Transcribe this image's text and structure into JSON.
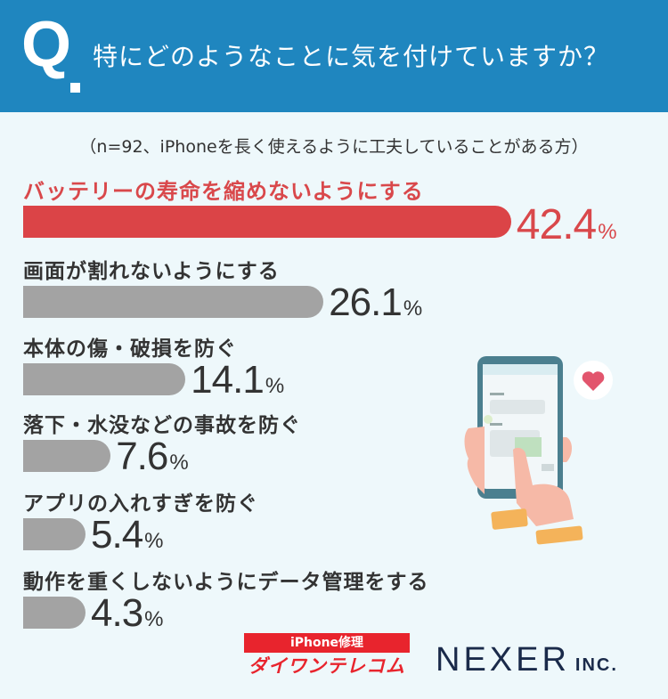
{
  "header": {
    "q_letter": "Q",
    "question": "特にどのようなことに気を付けていますか？"
  },
  "note": "（n=92、iPhoneを長く使えるように工夫していることがある方）",
  "chart_data": {
    "type": "bar",
    "categories": [
      "バッテリーの寿命を縮めないようにする",
      "画面が割れないようにする",
      "本体の傷・破損を防ぐ",
      "落下・水没などの事故を防ぐ",
      "アプリの入れすぎを防ぐ",
      "動作を重くしないようにデータ管理をする"
    ],
    "values": [
      42.4,
      26.1,
      14.1,
      7.6,
      5.4,
      4.3
    ],
    "value_labels": [
      "42.4",
      "26.1",
      "14.1",
      "7.6",
      "5.4",
      "4.3"
    ],
    "unit": "%",
    "highlight_index": 0,
    "colors": {
      "highlight": "#db4447",
      "default": "#a3a3a3"
    }
  },
  "colors": {
    "header_bg": "#1f86bf",
    "page_bg": "#eef8fb"
  },
  "logos": {
    "daiwan_top": "iPhone修理",
    "daiwan_bottom": "ダイワンテレコム",
    "nexer_main": "NEXER",
    "nexer_inc": "INC."
  },
  "illustration": {
    "icons": [
      "smartphone-icon",
      "heart-icon",
      "hand-icon"
    ]
  }
}
